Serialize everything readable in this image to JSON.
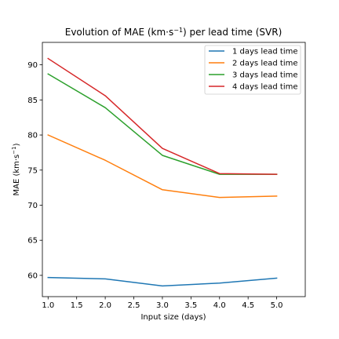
{
  "chart_data": {
    "type": "line",
    "title_main": "Evolution of MAE (km·s",
    "title_sup": "−1",
    "title_tail": ") per lead time (SVR)",
    "xlabel": "Input size (days)",
    "ylabel_main": "MAE (km·s",
    "ylabel_sup": "−1",
    "ylabel_tail": ")",
    "x": [
      1.0,
      2.0,
      3.0,
      4.0,
      5.0
    ],
    "xlim": [
      0.9,
      5.5
    ],
    "ylim": [
      56.97,
      93.2
    ],
    "xticks": [
      1.0,
      1.5,
      2.0,
      2.5,
      3.0,
      3.5,
      4.0,
      4.5,
      5.0
    ],
    "xtick_labels": [
      "1.0",
      "1.5",
      "2.0",
      "2.5",
      "3.0",
      "3.5",
      "4.0",
      "4.5",
      "5.0"
    ],
    "yticks": [
      60,
      65,
      70,
      75,
      80,
      85,
      90
    ],
    "ytick_labels": [
      "60",
      "65",
      "70",
      "75",
      "80",
      "85",
      "90"
    ],
    "grid": false,
    "legend_position": "top-right",
    "series": [
      {
        "name": "1 days lead time",
        "color": "#1f77b4",
        "values": [
          59.7,
          59.5,
          58.5,
          58.9,
          59.6
        ]
      },
      {
        "name": "2 days lead time",
        "color": "#ff7f0e",
        "values": [
          80.0,
          76.4,
          72.2,
          71.1,
          71.3
        ]
      },
      {
        "name": "3 days lead time",
        "color": "#2ca02c",
        "values": [
          88.7,
          83.9,
          77.1,
          74.4,
          74.4
        ]
      },
      {
        "name": "4 days lead time",
        "color": "#d62728",
        "values": [
          90.9,
          85.6,
          78.1,
          74.5,
          74.4
        ]
      }
    ]
  }
}
